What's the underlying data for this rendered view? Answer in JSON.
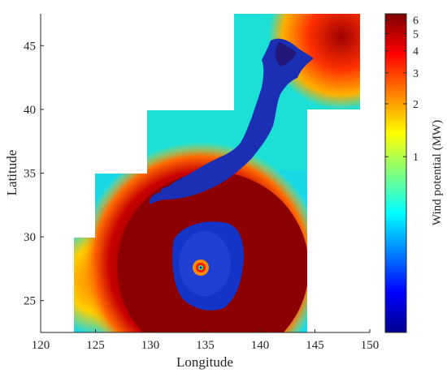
{
  "figure": {
    "xlabel": "Longitude",
    "ylabel": "Latitude",
    "colorbar_label": "Wind potential (MW)",
    "x_ticks": [
      "120",
      "125",
      "130",
      "135",
      "140",
      "145",
      "150"
    ],
    "y_ticks": [
      "25",
      "30",
      "35",
      "40",
      "45"
    ],
    "colorbar_ticks": [
      "1",
      "2",
      "3",
      "4",
      "5",
      "6"
    ],
    "colormap": "jet",
    "colorbar_scale": "log",
    "colors": {
      "low": "#00008f",
      "mid": "#00ffff",
      "high": "#800000",
      "land_dark": "#1a2fb4"
    }
  },
  "chart_data": {
    "type": "heatmap",
    "title": "",
    "xlabel": "Longitude",
    "ylabel": "Latitude",
    "xlim": [
      120,
      150
    ],
    "ylim": [
      22.5,
      47.5
    ],
    "colorbar": {
      "label": "Wind potential (MW)",
      "scale": "log",
      "range": [
        0.1,
        6.5
      ],
      "ticks": [
        1,
        2,
        3,
        4,
        5,
        6
      ]
    },
    "features": {
      "typhoon_center": {
        "lon": 135.5,
        "lat": 27.5,
        "value": "peak in eye wall, ~0 in eye"
      },
      "typhoon_calm_ring": {
        "lon_range": [
          131.5,
          140
        ],
        "lat_range": [
          24.3,
          30.5
        ],
        "value": 0.1
      },
      "high_wind_region": {
        "lon_range": [
          129,
          145
        ],
        "lat_range": [
          22.5,
          33
        ],
        "value": 6.5
      }
    }
  }
}
